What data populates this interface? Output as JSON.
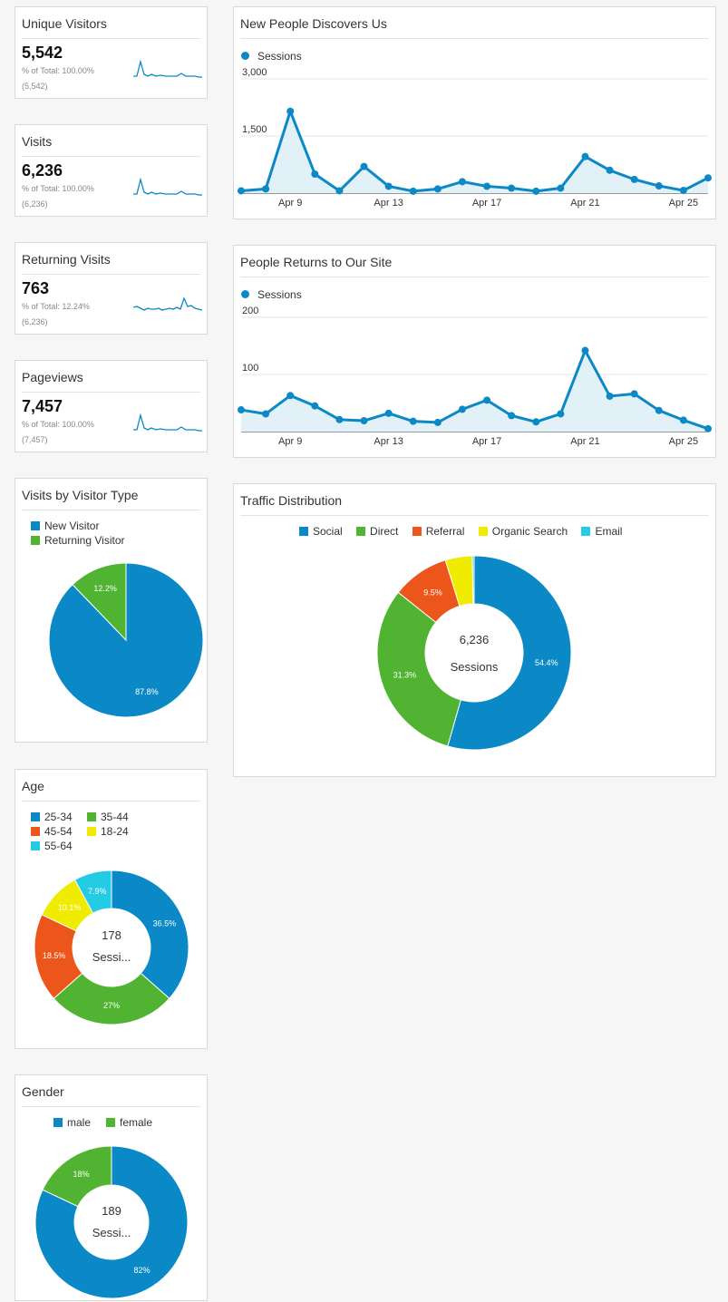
{
  "colors": {
    "blue": "#0a89c6",
    "green": "#50b432",
    "orange": "#ed561b",
    "yellow": "#f0ec00",
    "cyan": "#24cbe5",
    "area_fill": "#e2f0f8"
  },
  "metrics": [
    {
      "title": "Unique Visitors",
      "value": "5,542",
      "pct": "% of Total: 100.00%",
      "total": "(5,542)"
    },
    {
      "title": "Visits",
      "value": "6,236",
      "pct": "% of Total: 100.00%",
      "total": "(6,236)"
    },
    {
      "title": "Returning Visits",
      "value": "763",
      "pct": "% of Total: 12.24%",
      "total": "(6,236)"
    },
    {
      "title": "Pageviews",
      "value": "7,457",
      "pct": "% of Total: 100.00%",
      "total": "(7,457)"
    }
  ],
  "visitor_type": {
    "title": "Visits by Visitor Type",
    "legend": [
      "New Visitor",
      "Returning Visitor"
    ]
  },
  "age": {
    "title": "Age",
    "legend": [
      "25-34",
      "35-44",
      "45-54",
      "18-24",
      "55-64"
    ],
    "center_value": "178",
    "center_label": "Sessi..."
  },
  "gender": {
    "title": "Gender",
    "legend": [
      "male",
      "female"
    ],
    "center_value": "189",
    "center_label": "Sessi..."
  },
  "new_people": {
    "title": "New People Discovers Us",
    "legend": "Sessions"
  },
  "returning_people": {
    "title": "People Returns to Our Site",
    "legend": "Sessions"
  },
  "traffic": {
    "title": "Traffic Distribution",
    "legend": [
      "Social",
      "Direct",
      "Referral",
      "Organic Search",
      "Email"
    ],
    "center_value": "6,236",
    "center_label": "Sessions"
  },
  "chart_data": [
    {
      "type": "line",
      "x": [
        "Apr 7",
        "Apr 8",
        "Apr 9",
        "Apr 10",
        "Apr 11",
        "Apr 12",
        "Apr 13",
        "Apr 14",
        "Apr 15",
        "Apr 16",
        "Apr 17",
        "Apr 18",
        "Apr 19",
        "Apr 20",
        "Apr 21",
        "Apr 22",
        "Apr 23",
        "Apr 24",
        "Apr 25",
        "Apr 26"
      ],
      "x_ticks": [
        "Apr 9",
        "Apr 13",
        "Apr 17",
        "Apr 21",
        "Apr 25"
      ],
      "series": [
        {
          "name": "Sessions",
          "values": [
            60,
            110,
            2150,
            500,
            60,
            700,
            180,
            50,
            110,
            300,
            180,
            130,
            50,
            130,
            960,
            600,
            360,
            190,
            70,
            400
          ]
        }
      ],
      "ylim": [
        0,
        3000
      ],
      "y_ticks": [
        "3,000",
        "1,500"
      ]
    },
    {
      "type": "line",
      "x": [
        "Apr 7",
        "Apr 8",
        "Apr 9",
        "Apr 10",
        "Apr 11",
        "Apr 12",
        "Apr 13",
        "Apr 14",
        "Apr 15",
        "Apr 16",
        "Apr 17",
        "Apr 18",
        "Apr 19",
        "Apr 20",
        "Apr 21",
        "Apr 22",
        "Apr 23",
        "Apr 24",
        "Apr 25",
        "Apr 26"
      ],
      "x_ticks": [
        "Apr 9",
        "Apr 13",
        "Apr 17",
        "Apr 21",
        "Apr 25"
      ],
      "series": [
        {
          "name": "Sessions",
          "values": [
            38,
            31,
            63,
            45,
            21,
            19,
            32,
            18,
            16,
            39,
            55,
            28,
            17,
            31,
            142,
            62,
            66,
            37,
            20,
            5
          ]
        }
      ],
      "ylim": [
        0,
        200
      ],
      "y_ticks": [
        "200",
        "100"
      ]
    },
    {
      "type": "pie",
      "categories": [
        "New Visitor",
        "Returning Visitor"
      ],
      "values": [
        87.8,
        12.2
      ],
      "labels": [
        "87.8%",
        "12.2%"
      ]
    },
    {
      "type": "pie",
      "categories": [
        "Social",
        "Direct",
        "Referral",
        "Organic Search",
        "Email"
      ],
      "values": [
        54.4,
        31.3,
        9.5,
        4.5,
        0.3
      ],
      "labels": [
        "54.4%",
        "31.3%",
        "9.5%",
        "",
        ""
      ]
    },
    {
      "type": "pie",
      "categories": [
        "25-34",
        "35-44",
        "45-54",
        "18-24",
        "55-64"
      ],
      "values": [
        36.5,
        27,
        18.5,
        10.1,
        7.9
      ],
      "labels": [
        "36.5%",
        "27%",
        "18.5%",
        "10.1%",
        "7.9%"
      ]
    },
    {
      "type": "pie",
      "categories": [
        "male",
        "female"
      ],
      "values": [
        82,
        18
      ],
      "labels": [
        "82%",
        "18%"
      ]
    }
  ]
}
